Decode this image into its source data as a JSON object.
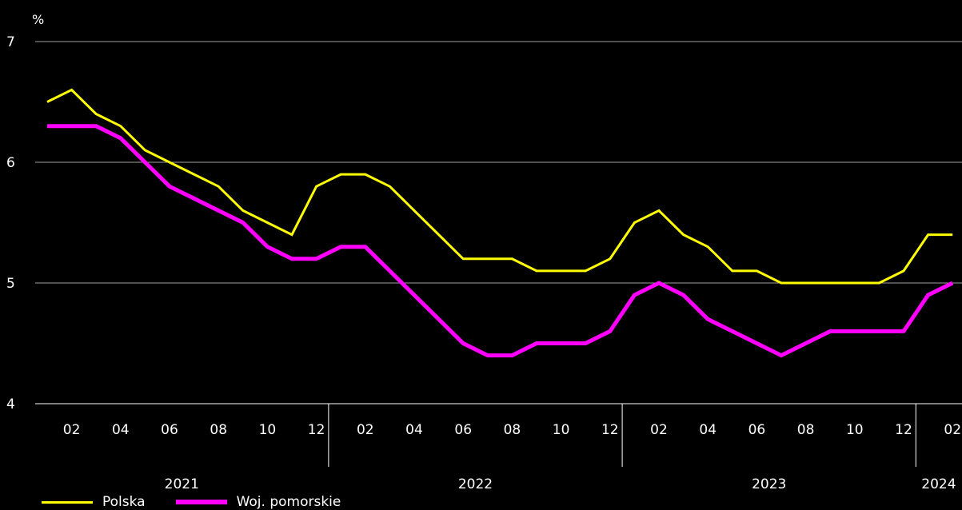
{
  "chart_data": {
    "type": "line",
    "ylabel": "%",
    "ylim": [
      4,
      7
    ],
    "yticks": [
      "4",
      "5",
      "6",
      "7"
    ],
    "grid": true,
    "legend_position": "bottom-left",
    "x_month_labels": [
      "02",
      "04",
      "06",
      "08",
      "10",
      "12",
      "02",
      "04",
      "06",
      "08",
      "10",
      "12",
      "02",
      "04",
      "06",
      "08",
      "10",
      "12",
      "02"
    ],
    "x_year_labels": [
      "2021",
      "2022",
      "2023",
      "2024"
    ],
    "x": [
      "2021-01",
      "2021-02",
      "2021-03",
      "2021-04",
      "2021-05",
      "2021-06",
      "2021-07",
      "2021-08",
      "2021-09",
      "2021-10",
      "2021-11",
      "2021-12",
      "2022-01",
      "2022-02",
      "2022-03",
      "2022-04",
      "2022-05",
      "2022-06",
      "2022-07",
      "2022-08",
      "2022-09",
      "2022-10",
      "2022-11",
      "2022-12",
      "2023-01",
      "2023-02",
      "2023-03",
      "2023-04",
      "2023-05",
      "2023-06",
      "2023-07",
      "2023-08",
      "2023-09",
      "2023-10",
      "2023-11",
      "2023-12",
      "2024-01",
      "2024-02"
    ],
    "series": [
      {
        "name": "Polska",
        "color": "#ffff00",
        "values": [
          6.5,
          6.6,
          6.4,
          6.3,
          6.1,
          6.0,
          5.9,
          5.8,
          5.6,
          5.5,
          5.4,
          5.8,
          5.9,
          5.9,
          5.8,
          5.6,
          5.4,
          5.2,
          5.2,
          5.2,
          5.1,
          5.1,
          5.1,
          5.2,
          5.5,
          5.6,
          5.4,
          5.3,
          5.1,
          5.1,
          5.0,
          5.0,
          5.0,
          5.0,
          5.0,
          5.1,
          5.4,
          5.4
        ]
      },
      {
        "name": "Woj. pomorskie",
        "color": "#ff00ff",
        "values": [
          6.3,
          6.3,
          6.3,
          6.2,
          6.0,
          5.8,
          5.7,
          5.6,
          5.5,
          5.3,
          5.2,
          5.2,
          5.3,
          5.3,
          5.1,
          4.9,
          4.7,
          4.5,
          4.4,
          4.4,
          4.5,
          4.5,
          4.5,
          4.6,
          4.9,
          5.0,
          4.9,
          4.7,
          4.6,
          4.5,
          4.4,
          4.5,
          4.6,
          4.6,
          4.6,
          4.6,
          4.9,
          5.0
        ]
      }
    ]
  }
}
